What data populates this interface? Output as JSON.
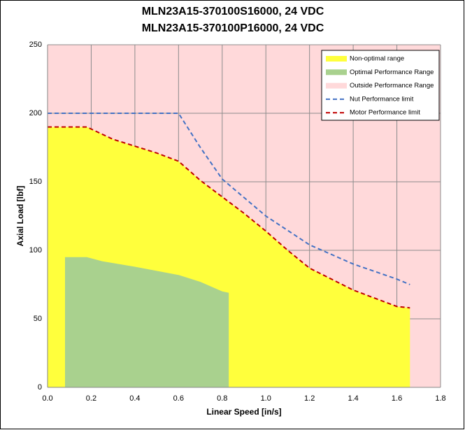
{
  "chart_data": {
    "type": "line",
    "title": [
      "MLN23A15-370100S16000, 24 VDC",
      "MLN23A15-370100P16000, 24 VDC"
    ],
    "xlabel": "Linear Speed [in/s]",
    "ylabel": "Axial Load [lbf]",
    "xlim": [
      0,
      1.8
    ],
    "ylim": [
      0,
      250
    ],
    "xticks": [
      {
        "value": 0,
        "label": "0.0"
      },
      0.2,
      0.4,
      0.6,
      0.8,
      {
        "value": 1,
        "label": "1.0"
      },
      1.2,
      1.4,
      1.6,
      1.8
    ],
    "yticks": [
      0,
      50,
      100,
      150,
      200,
      250
    ],
    "grid": true,
    "legend": "top-right",
    "series": [
      {
        "name": "Non-optimal range",
        "type": "area",
        "color": "#ffff3c",
        "x": [
          0,
          0.18,
          0.3,
          0.4,
          0.5,
          0.6,
          0.7,
          0.8,
          0.9,
          1.0,
          1.1,
          1.2,
          1.3,
          1.4,
          1.5,
          1.6,
          1.66
        ],
        "values": [
          190,
          190,
          181,
          176,
          171,
          165,
          151,
          139,
          127,
          114,
          100,
          87,
          79,
          71,
          65,
          59,
          58
        ]
      },
      {
        "name": "Optimal Performance Range",
        "type": "area",
        "color": "#a9d18e",
        "x": [
          0.08,
          0.18,
          0.25,
          0.4,
          0.6,
          0.7,
          0.8,
          0.83
        ],
        "values": [
          95,
          95,
          92,
          88,
          82,
          77,
          70,
          69
        ]
      },
      {
        "name": "Outside Performance Range",
        "type": "area",
        "color": "#ffd9da",
        "x": [
          0,
          1.8
        ],
        "values": [
          250,
          250
        ]
      },
      {
        "name": "Nut Performance limit",
        "type": "line",
        "dashed": true,
        "color": "#4472c4",
        "x": [
          0,
          0.6,
          0.7,
          0.8,
          1.0,
          1.2,
          1.4,
          1.6,
          1.66
        ],
        "values": [
          200,
          200,
          175,
          152,
          125,
          104,
          90,
          79,
          75
        ]
      },
      {
        "name": "Motor Performance limit",
        "type": "line",
        "dashed": true,
        "color": "#c00000",
        "x": [
          0,
          0.18,
          0.3,
          0.4,
          0.5,
          0.6,
          0.7,
          0.8,
          0.9,
          1.0,
          1.1,
          1.2,
          1.3,
          1.4,
          1.5,
          1.6,
          1.66
        ],
        "values": [
          190,
          190,
          181,
          176,
          171,
          165,
          151,
          139,
          127,
          114,
          100,
          87,
          79,
          71,
          65,
          59,
          58
        ]
      }
    ]
  }
}
